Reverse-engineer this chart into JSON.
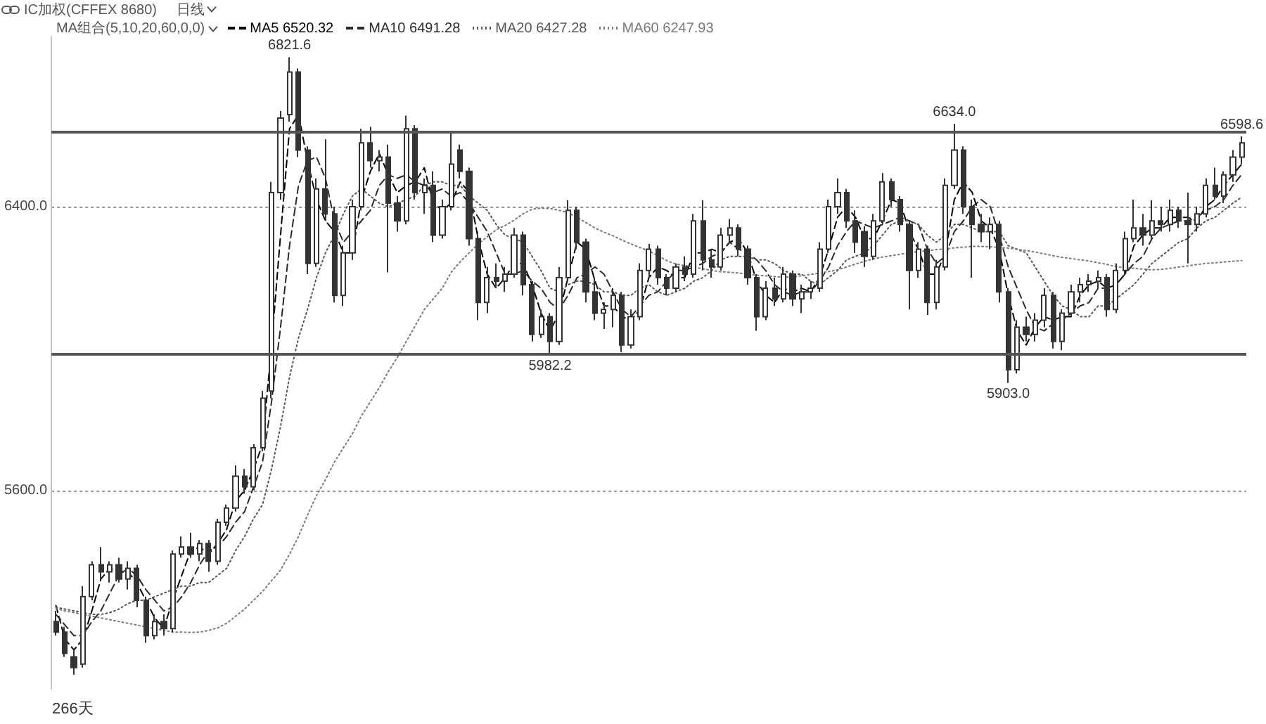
{
  "chart_data": {
    "type": "candlestick",
    "title": "IC加权(CFFEX 8680)",
    "subtitle": "日线",
    "legend_title": "MA组合(5,10,20,60,0,0)",
    "legend": "top left",
    "color": "#333333",
    "categories": [
      null,
      null,
      null,
      null,
      null,
      null,
      null,
      null,
      null,
      null,
      null,
      null,
      null,
      null,
      null,
      null,
      null,
      null,
      null,
      null,
      null,
      null,
      null,
      null,
      null,
      null,
      null,
      null,
      null,
      null,
      null,
      null,
      null,
      null,
      null,
      null,
      null,
      null,
      null,
      null,
      null,
      null,
      null,
      null,
      null,
      null,
      null,
      null,
      null,
      null,
      null,
      null,
      null,
      null,
      null,
      null,
      null,
      null,
      null,
      null,
      null,
      null,
      null,
      null,
      null,
      null,
      null,
      null,
      null,
      null,
      null,
      null,
      null,
      null,
      null,
      null,
      null,
      null,
      null,
      null,
      null,
      null,
      null,
      null,
      null,
      null,
      null,
      null,
      null,
      null,
      null,
      null,
      null,
      null,
      null,
      null,
      null,
      null,
      null,
      null,
      null,
      null,
      null,
      null,
      null,
      null,
      null,
      null,
      null,
      null,
      null,
      null,
      null,
      null,
      null,
      null,
      null,
      null,
      null,
      null,
      null,
      null,
      null,
      null,
      null,
      null,
      null,
      null,
      null,
      null,
      null,
      null,
      null
    ],
    "ohlc": [
      [
        5230,
        5260,
        5190,
        5200
      ],
      [
        5200,
        5215,
        5130,
        5140
      ],
      [
        5130,
        5150,
        5080,
        5100
      ],
      [
        5110,
        5330,
        5100,
        5300
      ],
      [
        5300,
        5400,
        5290,
        5390
      ],
      [
        5390,
        5440,
        5350,
        5370
      ],
      [
        5370,
        5400,
        5340,
        5390
      ],
      [
        5390,
        5410,
        5340,
        5350
      ],
      [
        5350,
        5400,
        5320,
        5380
      ],
      [
        5380,
        5390,
        5270,
        5290
      ],
      [
        5290,
        5300,
        5170,
        5190
      ],
      [
        5190,
        5250,
        5180,
        5230
      ],
      [
        5230,
        5250,
        5190,
        5210
      ],
      [
        5210,
        5430,
        5200,
        5420
      ],
      [
        5420,
        5470,
        5410,
        5440
      ],
      [
        5440,
        5480,
        5410,
        5420
      ],
      [
        5420,
        5460,
        5400,
        5450
      ],
      [
        5450,
        5460,
        5370,
        5400
      ],
      [
        5400,
        5520,
        5390,
        5510
      ],
      [
        5510,
        5560,
        5500,
        5550
      ],
      [
        5550,
        5670,
        5540,
        5640
      ],
      [
        5640,
        5660,
        5590,
        5610
      ],
      [
        5610,
        5730,
        5600,
        5720
      ],
      [
        5720,
        5880,
        5710,
        5860
      ],
      [
        5880,
        6470,
        5860,
        6440
      ],
      [
        6440,
        6670,
        6420,
        6650
      ],
      [
        6660,
        6821.6,
        6640,
        6780
      ],
      [
        6780,
        6790,
        6540,
        6560
      ],
      [
        6560,
        6570,
        6210,
        6240
      ],
      [
        6240,
        6480,
        6230,
        6450
      ],
      [
        6450,
        6590,
        6360,
        6380
      ],
      [
        6380,
        6400,
        6130,
        6150
      ],
      [
        6150,
        6290,
        6120,
        6270
      ],
      [
        6270,
        6420,
        6250,
        6400
      ],
      [
        6400,
        6620,
        6390,
        6580
      ],
      [
        6580,
        6625,
        6510,
        6530
      ],
      [
        6530,
        6560,
        6500,
        6540
      ],
      [
        6540,
        6575,
        6215,
        6410
      ],
      [
        6410,
        6430,
        6330,
        6360
      ],
      [
        6360,
        6657,
        6350,
        6620
      ],
      [
        6620,
        6630,
        6420,
        6440
      ],
      [
        6440,
        6480,
        6380,
        6460
      ],
      [
        6460,
        6500,
        6300,
        6320
      ],
      [
        6320,
        6420,
        6310,
        6400
      ],
      [
        6400,
        6611,
        6390,
        6520
      ],
      [
        6560,
        6575,
        6480,
        6500
      ],
      [
        6500,
        6510,
        6290,
        6310
      ],
      [
        6310,
        6330,
        6080,
        6130
      ],
      [
        6130,
        6230,
        6100,
        6200
      ],
      [
        6200,
        6240,
        6170,
        6190
      ],
      [
        6190,
        6230,
        6160,
        6210
      ],
      [
        6210,
        6340,
        6200,
        6320
      ],
      [
        6320,
        6330,
        6150,
        6180
      ],
      [
        6180,
        6190,
        6020,
        6040
      ],
      [
        6040,
        6110,
        6030,
        6090
      ],
      [
        6090,
        6100,
        5982.2,
        6020
      ],
      [
        6020,
        6230,
        6010,
        6200
      ],
      [
        6200,
        6418,
        6190,
        6390
      ],
      [
        6390,
        6400,
        6280,
        6300
      ],
      [
        6300,
        6310,
        6130,
        6160
      ],
      [
        6160,
        6200,
        6080,
        6100
      ],
      [
        6100,
        6130,
        6055,
        6110
      ],
      [
        6110,
        6170,
        6060,
        6150
      ],
      [
        6150,
        6160,
        5990,
        6010
      ],
      [
        6010,
        6110,
        6000,
        6090
      ],
      [
        6090,
        6240,
        6080,
        6220
      ],
      [
        6220,
        6295,
        6200,
        6280
      ],
      [
        6280,
        6290,
        6180,
        6200
      ],
      [
        6200,
        6210,
        6150,
        6170
      ],
      [
        6170,
        6240,
        6160,
        6230
      ],
      [
        6230,
        6260,
        6190,
        6210
      ],
      [
        6210,
        6380,
        6200,
        6360
      ],
      [
        6360,
        6418,
        6220,
        6250
      ],
      [
        6250,
        6280,
        6200,
        6230
      ],
      [
        6230,
        6340,
        6220,
        6320
      ],
      [
        6320,
        6365,
        6300,
        6340
      ],
      [
        6340,
        6350,
        6260,
        6280
      ],
      [
        6280,
        6290,
        6180,
        6200
      ],
      [
        6200,
        6210,
        6050,
        6090
      ],
      [
        6090,
        6190,
        6080,
        6170
      ],
      [
        6170,
        6200,
        6120,
        6140
      ],
      [
        6140,
        6230,
        6130,
        6210
      ],
      [
        6210,
        6220,
        6120,
        6140
      ],
      [
        6140,
        6180,
        6100,
        6160
      ],
      [
        6160,
        6190,
        6140,
        6170
      ],
      [
        6170,
        6300,
        6160,
        6280
      ],
      [
        6280,
        6420,
        6270,
        6400
      ],
      [
        6400,
        6480,
        6380,
        6440
      ],
      [
        6440,
        6450,
        6340,
        6360
      ],
      [
        6360,
        6390,
        6270,
        6300
      ],
      [
        6330,
        6345,
        6230,
        6260
      ],
      [
        6260,
        6380,
        6250,
        6360
      ],
      [
        6360,
        6495,
        6350,
        6470
      ],
      [
        6470,
        6480,
        6400,
        6420
      ],
      [
        6420,
        6430,
        6330,
        6350
      ],
      [
        6350,
        6360,
        6110,
        6220
      ],
      [
        6220,
        6300,
        6200,
        6280
      ],
      [
        6280,
        6290,
        6095,
        6130
      ],
      [
        6130,
        6250,
        6110,
        6230
      ],
      [
        6230,
        6480,
        6220,
        6460
      ],
      [
        6460,
        6634,
        6450,
        6560
      ],
      [
        6560,
        6570,
        6380,
        6400
      ],
      [
        6400,
        6420,
        6200,
        6350
      ],
      [
        6350,
        6380,
        6300,
        6330
      ],
      [
        6330,
        6370,
        6280,
        6350
      ],
      [
        6350,
        6360,
        6130,
        6160
      ],
      [
        6160,
        6170,
        5903,
        5940
      ],
      [
        5940,
        6080,
        5930,
        6060
      ],
      [
        6060,
        6090,
        6020,
        6040
      ],
      [
        6040,
        6100,
        6020,
        6080
      ],
      [
        6080,
        6170,
        6060,
        6150
      ],
      [
        6150,
        6160,
        6000,
        6020
      ],
      [
        6020,
        6110,
        5995,
        6100
      ],
      [
        6100,
        6180,
        6090,
        6160
      ],
      [
        6160,
        6200,
        6130,
        6180
      ],
      [
        6180,
        6210,
        6160,
        6190
      ],
      [
        6190,
        6220,
        6170,
        6200
      ],
      [
        6200,
        6210,
        6090,
        6110
      ],
      [
        6110,
        6240,
        6100,
        6220
      ],
      [
        6220,
        6330,
        6210,
        6310
      ],
      [
        6310,
        6420,
        6300,
        6340
      ],
      [
        6340,
        6380,
        6290,
        6320
      ],
      [
        6320,
        6418,
        6310,
        6360
      ],
      [
        6360,
        6400,
        6330,
        6350
      ],
      [
        6350,
        6420,
        6330,
        6390
      ],
      [
        6390,
        6400,
        6340,
        6360
      ],
      [
        6360,
        6440,
        6240,
        6350
      ],
      [
        6350,
        6400,
        6330,
        6380
      ],
      [
        6380,
        6480,
        6370,
        6460
      ],
      [
        6460,
        6510,
        6420,
        6430
      ],
      [
        6430,
        6500,
        6410,
        6490
      ],
      [
        6490,
        6560,
        6470,
        6540
      ],
      [
        6540,
        6598.6,
        6520,
        6580
      ]
    ],
    "series": [
      {
        "name": "MA5 6520.32",
        "type": "line",
        "color": "#000000",
        "line_style": "dashed",
        "values": [
          5275,
          5180,
          5150,
          5180,
          5260,
          5350,
          5380,
          5370,
          5370,
          5340,
          5290,
          5240,
          5210,
          5290,
          5360,
          5430,
          5440,
          5420,
          5450,
          5490,
          5570,
          5600,
          5660,
          5730,
          6010,
          6320,
          6620,
          6660,
          6530,
          6420,
          6360,
          6330,
          6270,
          6270,
          6420,
          6500,
          6550,
          6490,
          6440,
          6460,
          6470,
          6510,
          6410,
          6390,
          6410,
          6470,
          6440,
          6310,
          6210,
          6170,
          6200,
          6240,
          6240,
          6180,
          6100,
          6050,
          6100,
          6200,
          6300,
          6280,
          6190,
          6120,
          6120,
          6090,
          6080,
          6110,
          6200,
          6230,
          6220,
          6200,
          6200,
          6270,
          6270,
          6280,
          6270,
          6300,
          6310,
          6270,
          6190,
          6150,
          6130,
          6170,
          6160,
          6170,
          6160,
          6200,
          6280,
          6370,
          6400,
          6370,
          6310,
          6310,
          6360,
          6420,
          6410,
          6330,
          6280,
          6210,
          6210,
          6270,
          6420,
          6470,
          6440,
          6360,
          6340,
          6280,
          6150,
          6050,
          6010,
          6060,
          6090,
          6080,
          6090,
          6090,
          6150,
          6180,
          6190,
          6170,
          6180,
          6210,
          6290,
          6320,
          6340,
          6340,
          6370,
          6370,
          6370,
          6360,
          6400,
          6420,
          6460,
          6490,
          6520.32
        ]
      },
      {
        "name": "MA10 6491.28",
        "type": "line",
        "color": "#2a2a2a",
        "line_style": "dashed",
        "values": [
          5250,
          5220,
          5190,
          5190,
          5230,
          5260,
          5310,
          5360,
          5380,
          5360,
          5320,
          5290,
          5260,
          5270,
          5300,
          5340,
          5390,
          5430,
          5440,
          5470,
          5510,
          5540,
          5610,
          5680,
          5850,
          6060,
          6290,
          6460,
          6530,
          6540,
          6480,
          6360,
          6300,
          6330,
          6360,
          6390,
          6460,
          6490,
          6480,
          6490,
          6470,
          6460,
          6440,
          6450,
          6430,
          6440,
          6410,
          6370,
          6330,
          6270,
          6210,
          6210,
          6220,
          6190,
          6170,
          6130,
          6110,
          6150,
          6200,
          6210,
          6230,
          6210,
          6160,
          6110,
          6090,
          6120,
          6150,
          6160,
          6190,
          6220,
          6220,
          6230,
          6240,
          6260,
          6270,
          6300,
          6280,
          6270,
          6250,
          6220,
          6180,
          6160,
          6150,
          6160,
          6160,
          6190,
          6230,
          6290,
          6330,
          6360,
          6350,
          6340,
          6350,
          6360,
          6370,
          6360,
          6350,
          6280,
          6240,
          6260,
          6330,
          6360,
          6400,
          6420,
          6400,
          6320,
          6230,
          6170,
          6110,
          6060,
          6050,
          6070,
          6080,
          6100,
          6120,
          6130,
          6170,
          6170,
          6180,
          6210,
          6240,
          6260,
          6310,
          6340,
          6350,
          6360,
          6360,
          6370,
          6390,
          6400,
          6420,
          6460,
          6491.28
        ]
      },
      {
        "name": "MA20 6427.28",
        "type": "line",
        "color": "#555555",
        "line_style": "dotted",
        "values": [
          5270,
          5265,
          5260,
          5255,
          5250,
          5250,
          5255,
          5265,
          5280,
          5290,
          5290,
          5300,
          5310,
          5320,
          5330,
          5330,
          5340,
          5340,
          5360,
          5380,
          5430,
          5470,
          5520,
          5560,
          5660,
          5780,
          5920,
          6030,
          6110,
          6200,
          6270,
          6320,
          6380,
          6430,
          6450,
          6430,
          6410,
          6400,
          6410,
          6420,
          6430,
          6460,
          6470,
          6470,
          6460,
          6460,
          6430,
          6410,
          6390,
          6350,
          6320,
          6310,
          6300,
          6260,
          6220,
          6170,
          6160,
          6180,
          6190,
          6190,
          6180,
          6160,
          6160,
          6150,
          6150,
          6170,
          6180,
          6160,
          6150,
          6160,
          6170,
          6190,
          6200,
          6220,
          6250,
          6260,
          6260,
          6260,
          6250,
          6250,
          6240,
          6220,
          6210,
          6210,
          6190,
          6180,
          6200,
          6220,
          6250,
          6260,
          6270,
          6290,
          6320,
          6350,
          6360,
          6360,
          6350,
          6320,
          6300,
          6320,
          6350,
          6350,
          6340,
          6330,
          6330,
          6330,
          6290,
          6280,
          6270,
          6230,
          6190,
          6150,
          6120,
          6110,
          6090,
          6090,
          6120,
          6120,
          6140,
          6160,
          6180,
          6210,
          6240,
          6260,
          6280,
          6300,
          6310,
          6340,
          6360,
          6370,
          6390,
          6410,
          6427.28
        ]
      },
      {
        "name": "MA60 6247.93",
        "type": "line",
        "color": "#7a7a7a",
        "line_style": "dotted",
        "values": [
          5266,
          5260,
          5255,
          5250,
          5245,
          5240,
          5235,
          5230,
          5225,
          5220,
          5215,
          5210,
          5205,
          5200,
          5200,
          5199,
          5200,
          5205,
          5212,
          5225,
          5245,
          5265,
          5290,
          5315,
          5345,
          5375,
          5420,
          5470,
          5530,
          5585,
          5630,
          5680,
          5720,
          5760,
          5810,
          5850,
          5890,
          5935,
          5975,
          6020,
          6065,
          6110,
          6140,
          6170,
          6215,
          6245,
          6270,
          6295,
          6315,
          6335,
          6347,
          6362,
          6380,
          6393,
          6396,
          6395,
          6390,
          6383,
          6370,
          6355,
          6340,
          6328,
          6318,
          6306,
          6295,
          6285,
          6275,
          6262,
          6248,
          6238,
          6234,
          6230,
          6225,
          6220,
          6217,
          6215,
          6213,
          6210,
          6207,
          6205,
          6203,
          6201,
          6202,
          6205,
          6209,
          6213,
          6217,
          6222,
          6230,
          6238,
          6246,
          6253,
          6258,
          6262,
          6266,
          6270,
          6274,
          6276,
          6279,
          6281,
          6284,
          6286,
          6288,
          6288,
          6287,
          6285,
          6283,
          6280,
          6276,
          6272,
          6267,
          6262,
          6257,
          6254,
          6250,
          6247,
          6242,
          6237,
          6231,
          6228,
          6226,
          6224,
          6222,
          6223,
          6226,
          6230,
          6233,
          6237,
          6240,
          6242,
          6244,
          6246,
          6247.93
        ]
      }
    ],
    "marker": "none",
    "ylim": [
      5040,
      6880
    ],
    "yticks": [
      {
        "value": 5600,
        "label": "5600.0"
      },
      {
        "value": 6400,
        "label": "6400.0"
      }
    ],
    "tick_labels": "y",
    "grid": "y",
    "ref_lines": [
      {
        "axis": "y",
        "value": 6610,
        "color": "#555555",
        "line_style": "solid"
      },
      {
        "axis": "y",
        "value": 5984,
        "color": "#555555",
        "line_style": "solid"
      }
    ],
    "annotations": [
      {
        "text": "6821.6",
        "y": 6821.6
      },
      {
        "text": "6634.0",
        "y": 6634
      },
      {
        "text": "6598.6",
        "y": 6598.6
      },
      {
        "text": "5982.2",
        "y": 5982.2
      },
      {
        "text": "5903.0",
        "y": 5903
      },
      "266天"
    ]
  }
}
